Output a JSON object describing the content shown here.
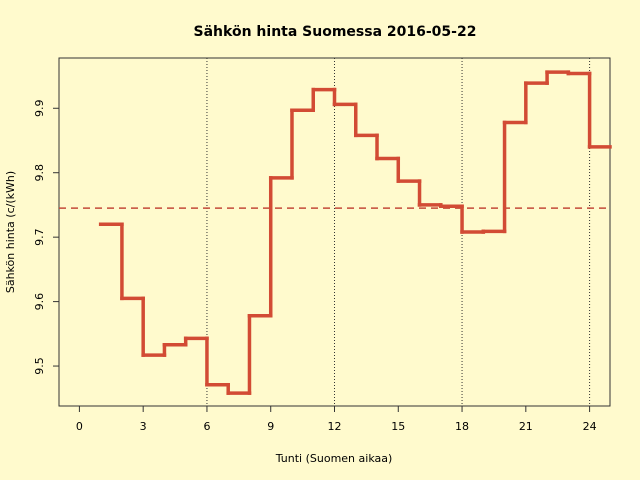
{
  "chart_data": {
    "type": "step",
    "title": "Sähkön hinta Suomessa 2016-05-22",
    "x_label": "Tunti (Suomen aikaa)",
    "y_label": "Sähkön hinta (c/(kWh)",
    "x": [
      1,
      2,
      3,
      4,
      5,
      6,
      7,
      8,
      9,
      10,
      11,
      12,
      13,
      14,
      15,
      16,
      17,
      18,
      19,
      20,
      21,
      22,
      23,
      24
    ],
    "series": [
      {
        "color": "#d24b34",
        "values": [
          9.72,
          9.605,
          9.517,
          9.533,
          9.543,
          9.471,
          9.458,
          9.578,
          9.792,
          9.897,
          9.929,
          9.906,
          9.858,
          9.822,
          9.787,
          9.75,
          9.748,
          9.708,
          9.709,
          9.878,
          9.939,
          9.956,
          9.954,
          9.84
        ]
      }
    ],
    "mean": 9.745,
    "mean_color": "#c44a3a",
    "vlines": [
      6,
      12,
      18,
      24
    ],
    "xlim": [
      -0.96,
      24.96
    ],
    "ylim": [
      9.438,
      9.978
    ],
    "xticks": [
      0,
      3,
      6,
      9,
      12,
      15,
      18,
      21,
      24
    ],
    "yticks": [
      9.5,
      9.6,
      9.7,
      9.8,
      9.9
    ]
  }
}
